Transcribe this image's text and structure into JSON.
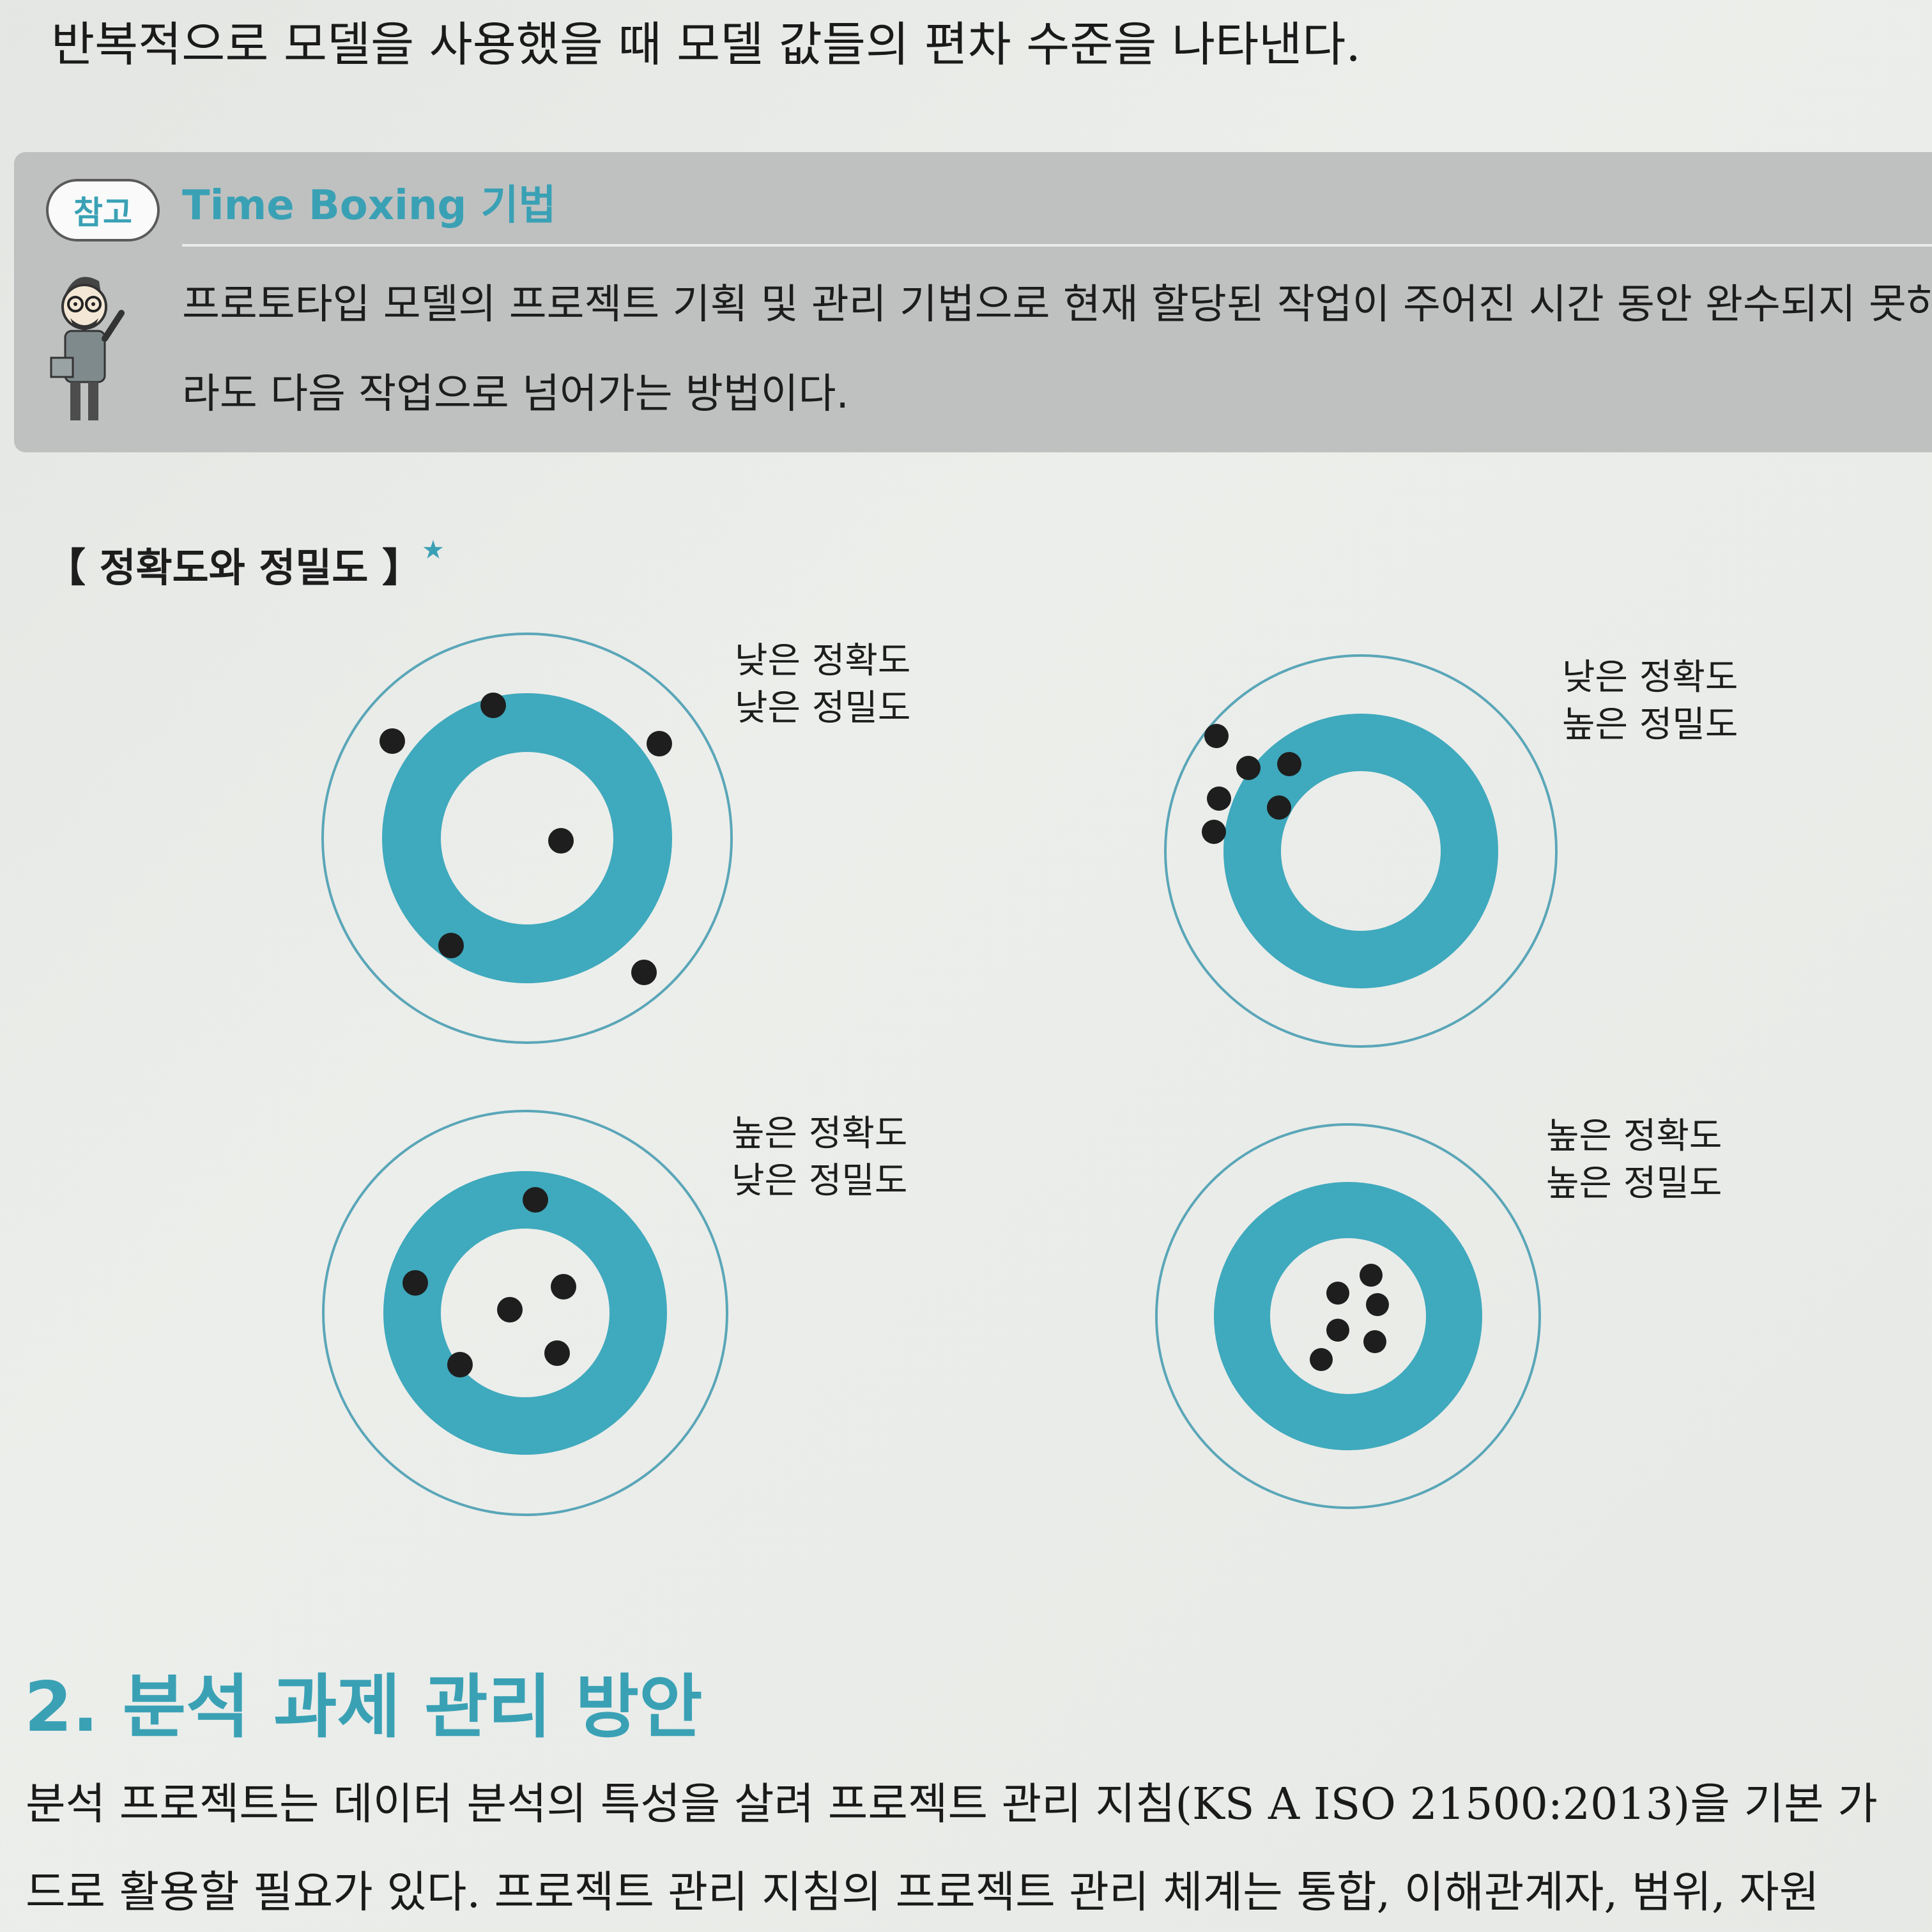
{
  "intro_text": "반복적으로 모델을 사용했을 때 모델 값들의 편차 수준을 나타낸다.",
  "note": {
    "badge": "참고",
    "title": "Time Boxing 기법",
    "line1": "프로토타입 모델의 프로젝트 기획 및 관리 기법으로 현재 할당된 작업이 주어진 시간 동안 완수되지 못하",
    "line2": "라도 다음 작업으로 넘어가는 방법이다."
  },
  "figure": {
    "title": "【 정확도와 정밀도 】",
    "star": "★",
    "targets": [
      {
        "label1": "낮은 정확도",
        "label2": "낮은 정밀도"
      },
      {
        "label1": "낮은 정확도",
        "label2": "높은 정밀도"
      },
      {
        "label1": "높은 정확도",
        "label2": "낮은 정밀도"
      },
      {
        "label1": "높은 정확도",
        "label2": "높은 정밀도"
      }
    ],
    "colors": {
      "ring": "#3fa9bd",
      "outline": "#5aa6b8",
      "dot": "#1e1e1e"
    }
  },
  "section": {
    "heading": "2. 분석 과제 관리 방안",
    "line1": "분석 프로젝트는 데이터 분석의 특성을 살려 프로젝트 관리 지침(KS A ISO 21500:2013)을 기본 가",
    "line2": "드로 활용할 필요가 있다. 프로젝트 관리 지침의 프로젝트 관리 체계는 통합, 이해관계자, 범위, 자원"
  }
}
